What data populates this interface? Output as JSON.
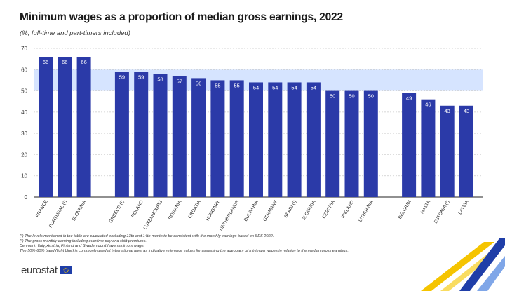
{
  "header": {
    "title": "Minimum wages as a proportion of median gross earnings, 2022",
    "subtitle": "(%; full-time and part-timers included)"
  },
  "colors": {
    "bar": "#2b3aa8",
    "band": "#d6e4ff",
    "grid": "#c9c9c9",
    "title": "#1a1a1a",
    "accent_yellow": "#f5c400",
    "accent_blue": "#1f3ea8"
  },
  "chart_data": {
    "type": "bar",
    "title": "Minimum wages as a proportion of median gross earnings, 2022",
    "subtitle": "(%; full-time and part-timers included)",
    "xlabel": "",
    "ylabel": "",
    "ylim": [
      0,
      70
    ],
    "yticks": [
      0,
      10,
      20,
      30,
      40,
      50,
      60,
      70
    ],
    "grid": "horizontal dashed",
    "band": [
      50,
      60
    ],
    "groups": [
      {
        "categories": [
          "FRANCE",
          "PORTUGAL (¹)",
          "SLOVENIA"
        ],
        "values": [
          66,
          66,
          66
        ],
        "labels": [
          "66",
          "66",
          "66"
        ]
      },
      {
        "categories": [
          "GREECE (¹)",
          "POLAND",
          "LUXEMBOURG",
          "ROMANIA",
          "CROATIA",
          "HUNGARY",
          "NETHERLANDS",
          "BULGARIA",
          "GERMANY",
          "SPAIN (¹)",
          "SLOVAKIA",
          "CZECHIA",
          "IRELAND",
          "LITHUANIA"
        ],
        "values": [
          59,
          59,
          58,
          57,
          56,
          55,
          55,
          54,
          54,
          54,
          54,
          50,
          50,
          50
        ],
        "labels": [
          "59",
          "59",
          "58",
          "57",
          "56",
          "55",
          "55",
          "54",
          "54",
          "54",
          "54",
          "50",
          "50",
          "50"
        ]
      },
      {
        "categories": [
          "BELGIUM",
          "MALTA",
          "ESTONIA (²)",
          "LATVIA"
        ],
        "values": [
          49,
          46,
          43,
          43
        ],
        "labels": [
          "49",
          "46",
          "43",
          "43"
        ]
      }
    ]
  },
  "footnotes": [
    "(¹) The levels mentioned in the table are calculated excluding 13th and 14th month to be consistent with the monthly earnings based on SES 2022.",
    "(²) The gross monthly earning including overtime pay and shift premiums.",
    "Denmark, Italy, Austria, Finland and Sweden don't have minimum wage.",
    "The 50%-60% band (light blue) is commonly used at international level as indicative reference values for assessing the adequacy of minimum wages in relation to the median gross earnings."
  ],
  "brand": {
    "logo_text": "eurostat"
  }
}
